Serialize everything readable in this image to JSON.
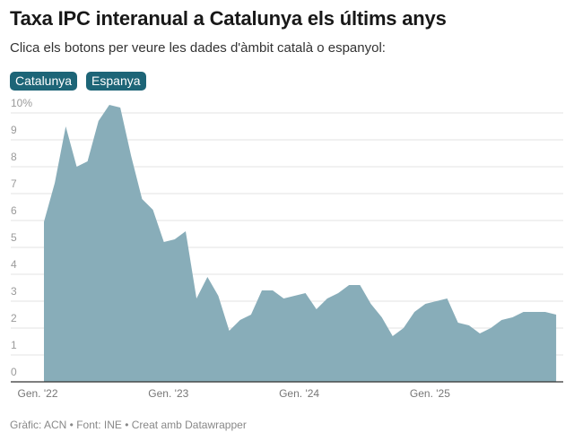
{
  "title": "Taxa IPC interanual a Catalunya els últims anys",
  "subtitle": "Clica els botons per veure les dades d'àmbit català o espanyol:",
  "buttons": [
    {
      "label": "Catalunya"
    },
    {
      "label": "Espanya"
    }
  ],
  "footer": "Gràfic: ACN • Font: INE • Creat amb Datawrapper",
  "chart_data": {
    "type": "area",
    "title": "Taxa IPC interanual a Catalunya els últims anys",
    "xlabel": "",
    "ylabel": "",
    "ylim": [
      0,
      10
    ],
    "yticks": [
      "0",
      "1",
      "2",
      "3",
      "4",
      "5",
      "6",
      "7",
      "8",
      "9",
      "10%"
    ],
    "xticks": [
      {
        "label": "Gen. '22",
        "month": "2022-01"
      },
      {
        "label": "Gen. '23",
        "month": "2023-01"
      },
      {
        "label": "Gen. '24",
        "month": "2024-01"
      },
      {
        "label": "Gen. '25",
        "month": "2025-01"
      }
    ],
    "grid": true,
    "fill_color": "#88adb9",
    "x": [
      "2022-01",
      "2022-02",
      "2022-03",
      "2022-04",
      "2022-05",
      "2022-06",
      "2022-07",
      "2022-08",
      "2022-09",
      "2022-10",
      "2022-11",
      "2022-12",
      "2023-01",
      "2023-02",
      "2023-03",
      "2023-04",
      "2023-05",
      "2023-06",
      "2023-07",
      "2023-08",
      "2023-09",
      "2023-10",
      "2023-11",
      "2023-12",
      "2024-01",
      "2024-02",
      "2024-03",
      "2024-04",
      "2024-05",
      "2024-06",
      "2024-07",
      "2024-08",
      "2024-09",
      "2024-10",
      "2024-11",
      "2024-12",
      "2025-01",
      "2025-02",
      "2025-03",
      "2025-04",
      "2025-05",
      "2025-06",
      "2025-07",
      "2025-08",
      "2025-09",
      "2025-10",
      "2025-11",
      "2025-12"
    ],
    "values": [
      5.95,
      7.4,
      9.5,
      8.0,
      8.2,
      9.7,
      10.3,
      10.2,
      8.4,
      6.8,
      6.4,
      5.2,
      5.3,
      5.6,
      3.1,
      3.9,
      3.2,
      1.9,
      2.3,
      2.5,
      3.4,
      3.4,
      3.1,
      3.2,
      3.3,
      2.7,
      3.1,
      3.3,
      3.6,
      3.6,
      2.9,
      2.4,
      1.7,
      2.0,
      2.6,
      2.9,
      3.0,
      3.1,
      2.2,
      2.1,
      1.8,
      2.0,
      2.3,
      2.4,
      2.6,
      2.6,
      2.6,
      2.5
    ]
  }
}
